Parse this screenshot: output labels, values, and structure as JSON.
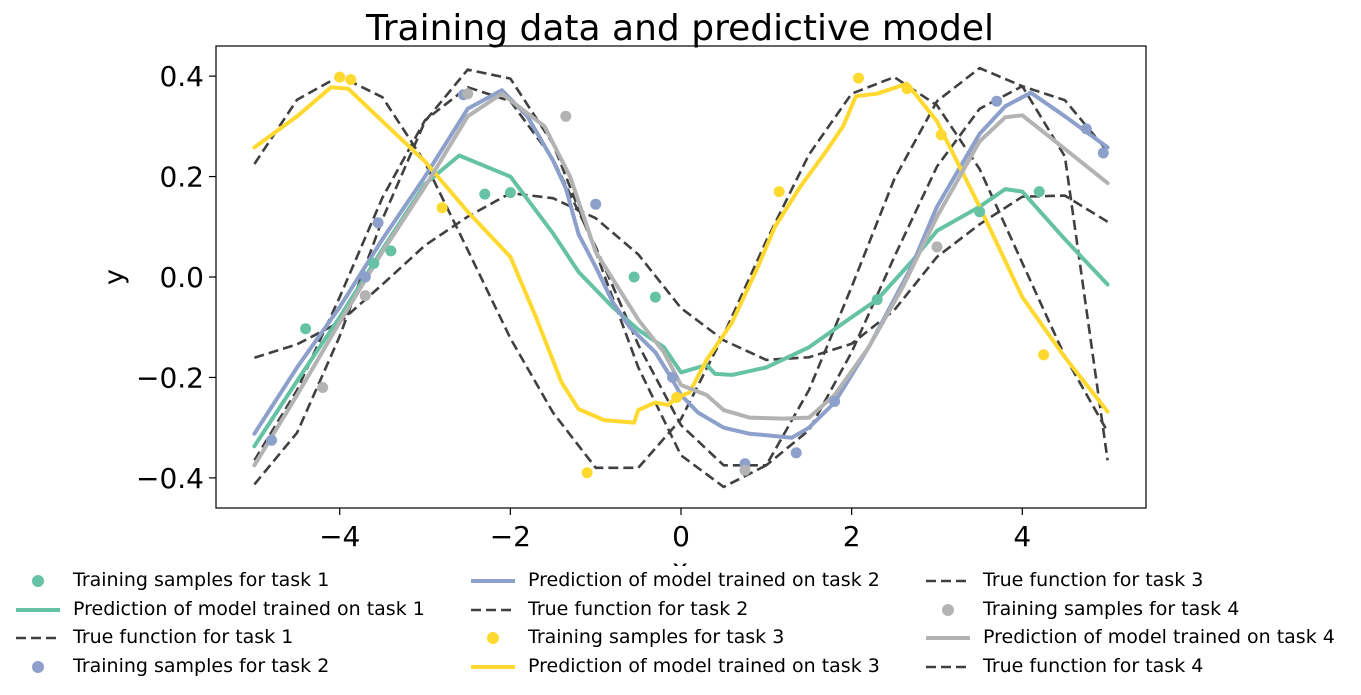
{
  "chart_data": {
    "type": "line",
    "title": "Training data and predictive model",
    "xlabel": "x",
    "ylabel": "y",
    "xlim": [
      -5.45,
      5.45
    ],
    "ylim": [
      -0.46,
      0.46
    ],
    "xticks": [
      -4,
      -2,
      0,
      2,
      4
    ],
    "xtick_labels": [
      "−4",
      "−2",
      "0",
      "2",
      "4"
    ],
    "yticks": [
      0.4,
      0.2,
      0.0,
      -0.2,
      -0.4
    ],
    "ytick_labels": [
      "0.4",
      "0.2",
      "0.0",
      "−0.2",
      "−0.4"
    ],
    "grid": false,
    "legend_position": "bottom",
    "tasks": [
      {
        "color": "#66c2a5",
        "true_function": [
          [
            -5,
            -0.161
          ],
          [
            -4.5,
            -0.134
          ],
          [
            -4,
            -0.09
          ],
          [
            -3.5,
            -0.015
          ],
          [
            -3,
            0.063
          ],
          [
            -2.5,
            0.12
          ],
          [
            -2,
            0.167
          ],
          [
            -1.5,
            0.157
          ],
          [
            -1,
            0.117
          ],
          [
            -0.5,
            0.045
          ],
          [
            0,
            -0.062
          ],
          [
            0.5,
            -0.126
          ],
          [
            1,
            -0.165
          ],
          [
            1.5,
            -0.16
          ],
          [
            2,
            -0.133
          ],
          [
            2.5,
            -0.066
          ],
          [
            3,
            0.04
          ],
          [
            3.5,
            0.105
          ],
          [
            4,
            0.16
          ],
          [
            4.5,
            0.162
          ],
          [
            5,
            0.11
          ]
        ],
        "prediction": [
          [
            -5,
            -0.337
          ],
          [
            -4.5,
            -0.207
          ],
          [
            -4,
            -0.08
          ],
          [
            -3.5,
            0.055
          ],
          [
            -3,
            0.185
          ],
          [
            -2.6,
            0.242
          ],
          [
            -2,
            0.2
          ],
          [
            -1.5,
            0.087
          ],
          [
            -1.2,
            0.01
          ],
          [
            -0.8,
            -0.06
          ],
          [
            -0.5,
            -0.105
          ],
          [
            -0.2,
            -0.14
          ],
          [
            0,
            -0.19
          ],
          [
            0.3,
            -0.175
          ],
          [
            0.4,
            -0.193
          ],
          [
            0.6,
            -0.195
          ],
          [
            1,
            -0.18
          ],
          [
            1.5,
            -0.14
          ],
          [
            2,
            -0.08
          ],
          [
            2.3,
            -0.045
          ],
          [
            2.7,
            0.03
          ],
          [
            3,
            0.092
          ],
          [
            3.5,
            0.14
          ],
          [
            3.8,
            0.175
          ],
          [
            4,
            0.17
          ],
          [
            4.5,
            0.075
          ],
          [
            5,
            -0.015
          ]
        ],
        "samples": [
          [
            -4.4,
            -0.103
          ],
          [
            -3.6,
            0.027
          ],
          [
            -3.4,
            0.052
          ],
          [
            -2.3,
            0.165
          ],
          [
            -2,
            0.168
          ],
          [
            -0.55,
            0.0
          ],
          [
            -0.3,
            -0.04
          ],
          [
            2.3,
            -0.045
          ],
          [
            3.5,
            0.13
          ],
          [
            4.2,
            0.17
          ]
        ]
      },
      {
        "color": "#8da0cb",
        "true_function": [
          [
            -5,
            -0.365
          ],
          [
            -4.5,
            -0.225
          ],
          [
            -4,
            -0.04
          ],
          [
            -3.5,
            0.158
          ],
          [
            -3,
            0.312
          ],
          [
            -2.5,
            0.378
          ],
          [
            -2,
            0.35
          ],
          [
            -1.5,
            0.235
          ],
          [
            -1,
            0.06
          ],
          [
            -0.5,
            -0.135
          ],
          [
            0,
            -0.295
          ],
          [
            0.5,
            -0.375
          ],
          [
            1,
            -0.375
          ],
          [
            1.5,
            -0.305
          ],
          [
            2,
            -0.15
          ],
          [
            2.5,
            0.04
          ],
          [
            3,
            0.22
          ],
          [
            3.5,
            0.335
          ],
          [
            4,
            0.38
          ],
          [
            4.5,
            0.352
          ],
          [
            5,
            0.25
          ]
        ],
        "prediction": [
          [
            -5,
            -0.312
          ],
          [
            -4.5,
            -0.18
          ],
          [
            -4,
            -0.06
          ],
          [
            -3.5,
            0.075
          ],
          [
            -3,
            0.2
          ],
          [
            -2.5,
            0.335
          ],
          [
            -2.1,
            0.372
          ],
          [
            -1.8,
            0.32
          ],
          [
            -1.5,
            0.232
          ],
          [
            -1.35,
            0.177
          ],
          [
            -1.2,
            0.085
          ],
          [
            -1,
            0.02
          ],
          [
            -0.8,
            -0.05
          ],
          [
            -0.6,
            -0.1
          ],
          [
            -0.3,
            -0.15
          ],
          [
            -0.1,
            -0.205
          ],
          [
            0,
            -0.235
          ],
          [
            0.2,
            -0.27
          ],
          [
            0.5,
            -0.3
          ],
          [
            0.8,
            -0.312
          ],
          [
            1,
            -0.315
          ],
          [
            1.3,
            -0.32
          ],
          [
            1.5,
            -0.3
          ],
          [
            1.8,
            -0.25
          ],
          [
            2.2,
            -0.14
          ],
          [
            2.7,
            0.02
          ],
          [
            3,
            0.14
          ],
          [
            3.5,
            0.285
          ],
          [
            3.8,
            0.34
          ],
          [
            4.1,
            0.367
          ],
          [
            4.5,
            0.32
          ],
          [
            5,
            0.258
          ]
        ],
        "samples": [
          [
            -4.8,
            -0.325
          ],
          [
            -3.55,
            0.108
          ],
          [
            -3.7,
            0.0
          ],
          [
            -2.55,
            0.363
          ],
          [
            -1.0,
            0.145
          ],
          [
            -0.1,
            -0.2
          ],
          [
            0.75,
            -0.372
          ],
          [
            1.35,
            -0.35
          ],
          [
            1.8,
            -0.248
          ],
          [
            3.7,
            0.35
          ],
          [
            4.75,
            0.295
          ],
          [
            4.95,
            0.247
          ]
        ]
      },
      {
        "color": "#ffd92f",
        "true_function": [
          [
            -5,
            0.225
          ],
          [
            -4.5,
            0.353
          ],
          [
            -4,
            0.4
          ],
          [
            -3.5,
            0.358
          ],
          [
            -3,
            0.228
          ],
          [
            -2.5,
            0.054
          ],
          [
            -2,
            -0.122
          ],
          [
            -1.5,
            -0.27
          ],
          [
            -1,
            -0.38
          ],
          [
            -0.5,
            -0.38
          ],
          [
            0,
            -0.283
          ],
          [
            0.5,
            -0.115
          ],
          [
            1,
            0.072
          ],
          [
            1.5,
            0.244
          ],
          [
            2,
            0.365
          ],
          [
            2.5,
            0.398
          ],
          [
            3,
            0.342
          ],
          [
            3.5,
            0.215
          ],
          [
            4,
            0.028
          ],
          [
            4.5,
            -0.158
          ],
          [
            5,
            -0.308
          ]
        ],
        "prediction": [
          [
            -5,
            0.258
          ],
          [
            -4.5,
            0.32
          ],
          [
            -4.1,
            0.378
          ],
          [
            -3.9,
            0.375
          ],
          [
            -3.5,
            0.31
          ],
          [
            -3,
            0.23
          ],
          [
            -2.5,
            0.13
          ],
          [
            -2,
            0.04
          ],
          [
            -1.7,
            -0.08
          ],
          [
            -1.4,
            -0.21
          ],
          [
            -1.2,
            -0.263
          ],
          [
            -0.9,
            -0.285
          ],
          [
            -0.55,
            -0.29
          ],
          [
            -0.5,
            -0.265
          ],
          [
            -0.3,
            -0.25
          ],
          [
            -0.15,
            -0.255
          ],
          [
            -0.05,
            -0.24
          ],
          [
            0.1,
            -0.23
          ],
          [
            0.3,
            -0.165
          ],
          [
            0.6,
            -0.09
          ],
          [
            0.9,
            0.02
          ],
          [
            1.1,
            0.1
          ],
          [
            1.4,
            0.18
          ],
          [
            1.7,
            0.25
          ],
          [
            1.9,
            0.3
          ],
          [
            2.05,
            0.36
          ],
          [
            2.3,
            0.365
          ],
          [
            2.65,
            0.385
          ],
          [
            3,
            0.31
          ],
          [
            3.5,
            0.14
          ],
          [
            4,
            -0.04
          ],
          [
            4.5,
            -0.16
          ],
          [
            5,
            -0.268
          ]
        ],
        "samples": [
          [
            -4.0,
            0.398
          ],
          [
            -3.87,
            0.393
          ],
          [
            -2.8,
            0.138
          ],
          [
            -1.1,
            -0.39
          ],
          [
            -0.05,
            -0.24
          ],
          [
            1.15,
            0.17
          ],
          [
            2.08,
            0.396
          ],
          [
            2.65,
            0.375
          ],
          [
            3.05,
            0.283
          ],
          [
            4.25,
            -0.155
          ]
        ]
      },
      {
        "color": "#b3b3b3",
        "true_function": [
          [
            -5,
            -0.413
          ],
          [
            -4.5,
            -0.31
          ],
          [
            -4,
            -0.118
          ],
          [
            -3.5,
            0.115
          ],
          [
            -3,
            0.31
          ],
          [
            -2.5,
            0.413
          ],
          [
            -2,
            0.395
          ],
          [
            -1.5,
            0.265
          ],
          [
            -1,
            0.05
          ],
          [
            -0.5,
            -0.18
          ],
          [
            0,
            -0.355
          ],
          [
            0.5,
            -0.418
          ],
          [
            1,
            -0.375
          ],
          [
            1.5,
            -0.225
          ],
          [
            2,
            -0.02
          ],
          [
            2.5,
            0.195
          ],
          [
            3,
            0.35
          ],
          [
            3.5,
            0.416
          ],
          [
            4,
            0.38
          ],
          [
            4.5,
            0.24
          ],
          [
            5,
            -0.365
          ]
        ],
        "prediction": [
          [
            -5,
            -0.375
          ],
          [
            -4.5,
            -0.235
          ],
          [
            -4,
            -0.09
          ],
          [
            -3.5,
            0.05
          ],
          [
            -3,
            0.18
          ],
          [
            -2.5,
            0.32
          ],
          [
            -2.1,
            0.365
          ],
          [
            -1.6,
            0.3
          ],
          [
            -1.3,
            0.2
          ],
          [
            -1,
            0.05
          ],
          [
            -0.5,
            -0.085
          ],
          [
            -0.2,
            -0.15
          ],
          [
            0,
            -0.215
          ],
          [
            0.3,
            -0.235
          ],
          [
            0.5,
            -0.265
          ],
          [
            0.8,
            -0.28
          ],
          [
            1.2,
            -0.282
          ],
          [
            1.5,
            -0.28
          ],
          [
            1.8,
            -0.235
          ],
          [
            2.2,
            -0.14
          ],
          [
            2.6,
            -0.02
          ],
          [
            3,
            0.12
          ],
          [
            3.5,
            0.27
          ],
          [
            3.8,
            0.318
          ],
          [
            4,
            0.322
          ],
          [
            4.5,
            0.255
          ],
          [
            5,
            0.187
          ]
        ],
        "samples": [
          [
            -4.2,
            -0.22
          ],
          [
            -3.7,
            -0.037
          ],
          [
            -2.5,
            0.365
          ],
          [
            -1.35,
            0.32
          ],
          [
            0.75,
            -0.385
          ],
          [
            3.0,
            0.06
          ]
        ]
      }
    ],
    "legend": [
      {
        "marker": "dot",
        "task": 0,
        "label": "Training samples for task 1"
      },
      {
        "marker": "line",
        "task": 0,
        "label": "Prediction of model trained on task 1"
      },
      {
        "marker": "dash",
        "task": 0,
        "label": "True function for task 1"
      },
      {
        "marker": "dot",
        "task": 1,
        "label": "Training samples for task 2"
      },
      {
        "marker": "line",
        "task": 1,
        "label": "Prediction of model trained on task 2"
      },
      {
        "marker": "dash",
        "task": 1,
        "label": "True function for task 2"
      },
      {
        "marker": "dot",
        "task": 2,
        "label": "Training samples for task 3"
      },
      {
        "marker": "line",
        "task": 2,
        "label": "Prediction of model trained on task 3"
      },
      {
        "marker": "dash",
        "task": 2,
        "label": "True function for task 3"
      },
      {
        "marker": "dot",
        "task": 3,
        "label": "Training samples for task 4"
      },
      {
        "marker": "line",
        "task": 3,
        "label": "Prediction of model trained on task 4"
      },
      {
        "marker": "dash",
        "task": 3,
        "label": "True function for task 4"
      }
    ],
    "true_function_color": "#404040"
  }
}
